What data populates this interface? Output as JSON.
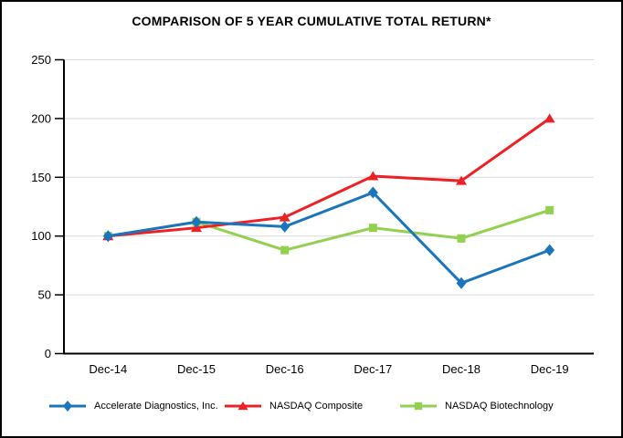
{
  "chart_data": {
    "type": "line",
    "title": "COMPARISON OF 5 YEAR CUMULATIVE TOTAL RETURN*",
    "categories": [
      "Dec-14",
      "Dec-15",
      "Dec-16",
      "Dec-17",
      "Dec-18",
      "Dec-19"
    ],
    "series": [
      {
        "name": "Accelerate Diagnostics, Inc.",
        "color": "#1b75bc",
        "marker": "diamond",
        "values": [
          100,
          112,
          108,
          137,
          60,
          88
        ]
      },
      {
        "name": "NASDAQ Composite",
        "color": "#ed2024",
        "marker": "triangle",
        "values": [
          100,
          107,
          116,
          151,
          147,
          200
        ]
      },
      {
        "name": "NASDAQ Biotechnology",
        "color": "#92d050",
        "marker": "square",
        "values": [
          100,
          112,
          88,
          107,
          98,
          122
        ]
      }
    ],
    "xlabel": "",
    "ylabel": "",
    "ylim": [
      0,
      250
    ],
    "yticks": [
      0,
      50,
      100,
      150,
      200,
      250
    ],
    "grid": true,
    "gridline_color": "#d9d9d9",
    "axis_color": "#000000",
    "background_color": "#ffffff",
    "border_color": "#000000",
    "legend_position": "bottom"
  }
}
